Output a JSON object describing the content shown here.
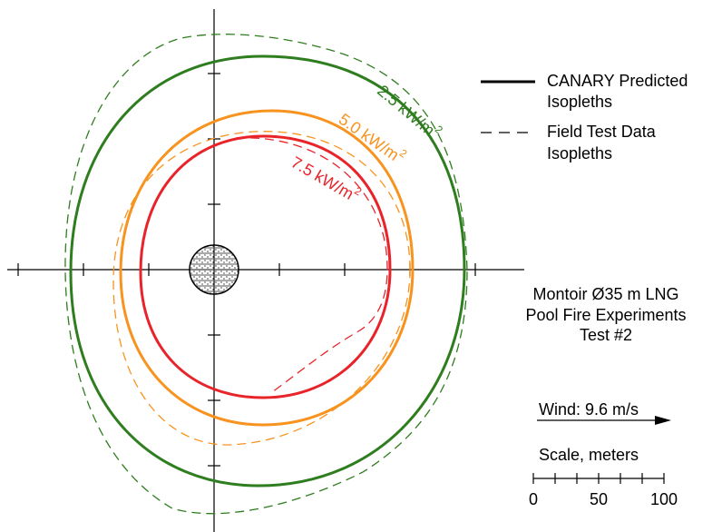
{
  "legend": {
    "solid": [
      "CANARY Predicted",
      "Isopleths"
    ],
    "dashed": [
      "Field Test Data",
      "Isopleths"
    ]
  },
  "contours": [
    {
      "text": "2.5 kW/m",
      "sup": "2"
    },
    {
      "text": "5.0 kW/m",
      "sup": "2"
    },
    {
      "text": "7.5 kW/m",
      "sup": "2"
    }
  ],
  "caption": [
    "Montoir Ø35 m LNG",
    "Pool Fire Experiments",
    "Test #2"
  ],
  "wind": "Wind: 9.6 m/s",
  "scale": {
    "title": "Scale, meters",
    "labels": [
      0,
      50,
      100
    ]
  }
}
